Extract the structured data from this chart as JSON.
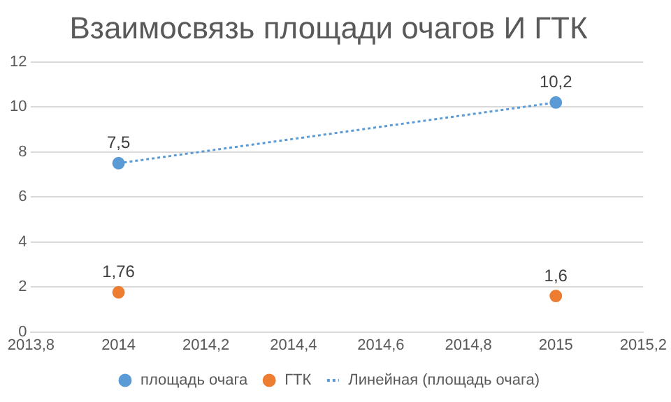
{
  "chart_data": {
    "type": "scatter",
    "title": "Взаимосвязь площади очагов И ГТК",
    "x": [
      2014,
      2015
    ],
    "xlim": [
      2013.8,
      2015.2
    ],
    "xticks": [
      {
        "value": 2013.8,
        "label": "2013,8"
      },
      2014,
      {
        "value": 2014.2,
        "label": "2014,2"
      },
      {
        "value": 2014.4,
        "label": "2014,4"
      },
      {
        "value": 2014.6,
        "label": "2014,6"
      },
      {
        "value": 2014.8,
        "label": "2014,8"
      },
      2015,
      {
        "value": 2015.2,
        "label": "2015,2"
      }
    ],
    "ylim": [
      0,
      12
    ],
    "yticks": [
      0,
      2,
      4,
      6,
      8,
      10,
      12
    ],
    "grid": "y",
    "legend": "bottom",
    "marker": "circle",
    "series": [
      {
        "name": "площадь очага",
        "color": "#5b9bd5",
        "values": [
          7.5,
          10.2
        ],
        "value_labels": [
          "7,5",
          "10,2"
        ]
      },
      {
        "name": "ГТК",
        "color": "#ed7d31",
        "values": [
          1.76,
          1.6
        ],
        "value_labels": [
          "1,76",
          "1,6"
        ]
      },
      {
        "name": "Линейная (площадь очага)",
        "type": "line",
        "color": "#5b9bd5",
        "line_style": "dotted",
        "marker": "none",
        "values": [
          7.5,
          10.2
        ]
      }
    ]
  }
}
